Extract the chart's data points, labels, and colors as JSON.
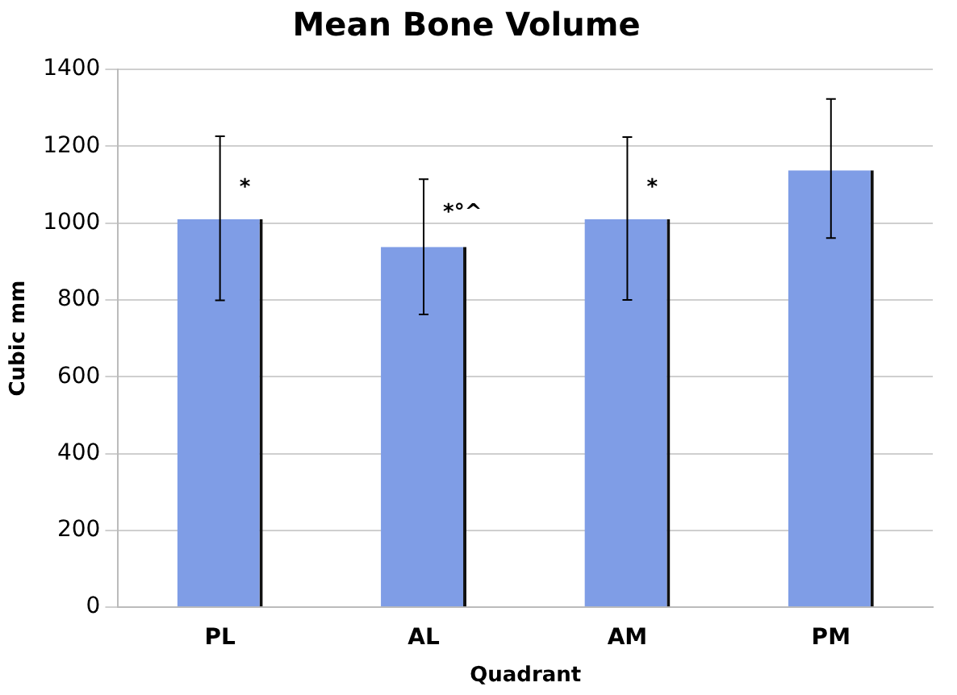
{
  "chart_data": {
    "type": "bar",
    "title": "Mean Bone Volume",
    "xlabel": "Quadrant",
    "ylabel": "Cubic mm",
    "categories": [
      "PL",
      "AL",
      "AM",
      "PM"
    ],
    "values": [
      1010,
      938,
      1010,
      1137
    ],
    "errors": [
      [
        799,
        1226
      ],
      [
        762,
        1114
      ],
      [
        800,
        1224
      ],
      [
        961,
        1323
      ]
    ],
    "color": "#7f9de6",
    "ylim": [
      0,
      1400
    ],
    "yticks": [
      0,
      200,
      400,
      600,
      800,
      1000,
      1200,
      1400
    ],
    "grid": "y",
    "legend": false,
    "annotations": [
      {
        "text": "*",
        "x": "PL",
        "y": 1090
      },
      {
        "text": "*°^",
        "x": "AL",
        "y": 1025
      },
      {
        "text": "*",
        "x": "AM",
        "y": 1090
      }
    ]
  }
}
